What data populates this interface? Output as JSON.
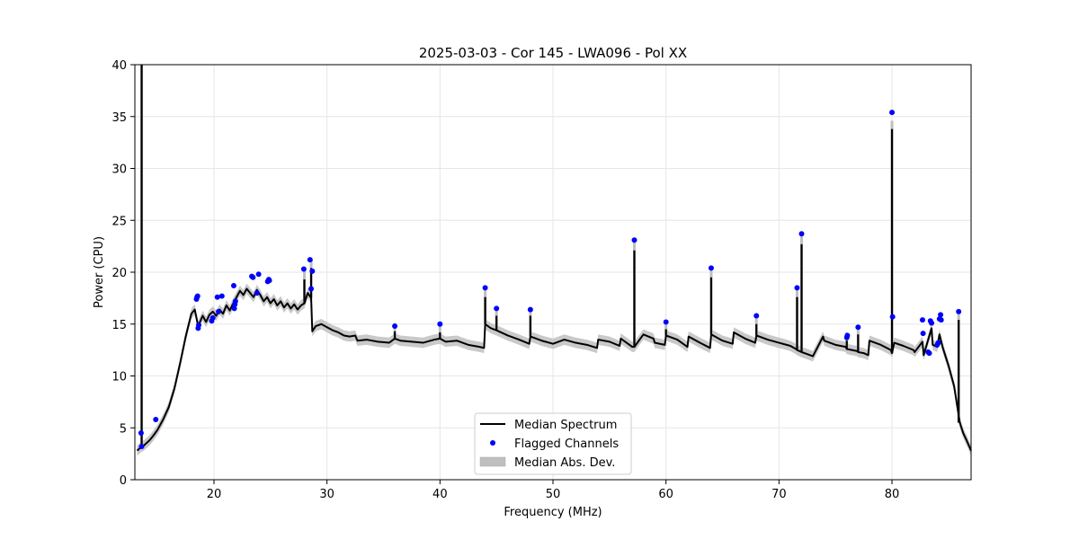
{
  "chart_data": {
    "type": "line",
    "title": "2025-03-03 - Cor 145 - LWA096 - Pol XX",
    "xlabel": "Frequency (MHz)",
    "ylabel": "Power (CPU)",
    "xlim": [
      13,
      87
    ],
    "ylim": [
      0,
      40
    ],
    "xticks": [
      20,
      30,
      40,
      50,
      60,
      70,
      80
    ],
    "yticks": [
      0,
      5,
      10,
      15,
      20,
      25,
      30,
      35,
      40
    ],
    "grid": true,
    "legend_position": "bottom-center",
    "colors": {
      "median": "#000000",
      "flagged": "#0000ff",
      "mad": "#bfbfbf"
    },
    "series": [
      {
        "name": "Median Spectrum",
        "kind": "line",
        "x": [
          13.2,
          13.4,
          13.6,
          13.8,
          14.0,
          14.3,
          14.6,
          15.0,
          15.5,
          16.0,
          16.5,
          17.0,
          17.5,
          18.0,
          18.3,
          18.6,
          18.8,
          19.0,
          19.3,
          19.6,
          19.9,
          20.2,
          20.5,
          20.8,
          21.1,
          21.4,
          21.7,
          22.0,
          22.3,
          22.6,
          22.9,
          23.2,
          23.5,
          23.8,
          24.1,
          24.4,
          24.7,
          25.0,
          25.3,
          25.6,
          25.9,
          26.2,
          26.5,
          26.8,
          27.1,
          27.4,
          27.7,
          28.0,
          28.3,
          28.6,
          28.7,
          29.0,
          29.5,
          30.0,
          30.5,
          31.0,
          31.5,
          32.0,
          32.5,
          32.7,
          33.5,
          34.5,
          35.5,
          36.0,
          36.5,
          37.5,
          38.5,
          39.5,
          40.0,
          40.5,
          41.5,
          42.5,
          43.5,
          43.9,
          44.0,
          44.5,
          45.0,
          46.0,
          47.0,
          47.9,
          48.0,
          49.0,
          50.0,
          51.0,
          52.0,
          53.0,
          53.9,
          54.0,
          55.0,
          55.9,
          56.0,
          56.9,
          57.0,
          57.2,
          58.0,
          58.9,
          59.0,
          59.9,
          60.0,
          61.0,
          61.9,
          62.0,
          63.0,
          63.9,
          64.0,
          65.0,
          65.9,
          66.0,
          67.0,
          67.9,
          68.0,
          69.0,
          70.0,
          71.0,
          71.5,
          71.6,
          72.0,
          72.5,
          73.0,
          73.9,
          74.0,
          75.0,
          75.9,
          76.0,
          76.9,
          77.0,
          77.5,
          77.9,
          78.0,
          79.0,
          79.9,
          80.0,
          80.2,
          81.0,
          81.9,
          82.0,
          82.7,
          82.8,
          83.5,
          83.6,
          84.0,
          84.2,
          84.5,
          85.0,
          85.5,
          86.0,
          86.3,
          86.6,
          87.0
        ],
        "y": [
          2.8,
          3.0,
          3.2,
          3.3,
          3.5,
          3.8,
          4.2,
          4.8,
          5.8,
          7.0,
          8.8,
          11.2,
          13.8,
          16.0,
          16.4,
          14.8,
          15.3,
          15.8,
          15.2,
          15.9,
          16.2,
          15.8,
          16.4,
          16.0,
          16.8,
          16.3,
          17.0,
          17.6,
          18.2,
          17.8,
          18.4,
          18.0,
          17.6,
          18.3,
          17.8,
          17.2,
          17.6,
          17.0,
          17.4,
          16.8,
          17.2,
          16.6,
          17.0,
          16.5,
          16.9,
          16.4,
          16.8,
          17.0,
          18.0,
          17.5,
          14.3,
          14.8,
          15.0,
          14.7,
          14.4,
          14.2,
          13.9,
          13.8,
          13.9,
          13.4,
          13.5,
          13.3,
          13.2,
          13.6,
          13.4,
          13.3,
          13.2,
          13.5,
          13.6,
          13.3,
          13.4,
          13.0,
          12.8,
          12.7,
          15.0,
          14.6,
          14.4,
          13.9,
          13.5,
          13.1,
          13.8,
          13.4,
          13.1,
          13.5,
          13.2,
          13.0,
          12.7,
          13.5,
          13.3,
          12.9,
          13.6,
          12.9,
          12.8,
          12.8,
          14.0,
          13.6,
          13.2,
          13.0,
          13.9,
          13.5,
          12.8,
          13.8,
          13.2,
          12.7,
          14.0,
          13.4,
          13.1,
          14.2,
          13.6,
          13.2,
          13.9,
          13.5,
          13.2,
          12.9,
          12.6,
          12.5,
          12.3,
          12.1,
          11.9,
          13.8,
          13.4,
          13.0,
          12.8,
          12.6,
          12.4,
          12.3,
          12.2,
          12.0,
          13.4,
          13.0,
          12.5,
          12.2,
          13.2,
          12.9,
          12.5,
          12.3,
          13.3,
          12.0,
          14.6,
          13.0,
          12.8,
          14.0,
          12.7,
          11.0,
          9.0,
          5.5,
          4.5,
          3.8,
          2.8
        ]
      },
      {
        "name": "Flagged Channels",
        "kind": "scatter",
        "x": [
          13.55,
          13.6,
          14.85,
          18.45,
          18.5,
          18.55,
          18.6,
          18.65,
          19.8,
          19.9,
          20.3,
          20.4,
          20.7,
          21.75,
          21.8,
          21.85,
          21.9,
          23.35,
          23.45,
          23.8,
          23.95,
          24.75,
          24.85,
          24.9,
          27.95,
          28.5,
          28.6,
          28.7,
          36.0,
          40.0,
          44.0,
          45.0,
          48.0,
          57.2,
          60.0,
          64.0,
          68.0,
          71.6,
          72.0,
          76.0,
          76.05,
          77.0,
          80.0,
          80.05,
          82.7,
          82.75,
          83.2,
          83.3,
          83.4,
          83.5,
          84.0,
          84.1,
          84.2,
          84.3,
          84.35,
          85.9
        ],
        "y": [
          4.5,
          3.2,
          5.8,
          17.4,
          17.6,
          17.7,
          14.6,
          14.9,
          15.3,
          15.6,
          17.6,
          16.2,
          17.7,
          18.7,
          16.5,
          16.9,
          17.2,
          19.6,
          19.5,
          18.0,
          19.8,
          19.1,
          19.3,
          19.2,
          20.3,
          21.2,
          18.4,
          20.1,
          14.8,
          15.0,
          18.5,
          16.5,
          16.4,
          23.1,
          15.2,
          20.4,
          15.8,
          18.5,
          23.7,
          13.7,
          13.9,
          14.7,
          35.4,
          15.7,
          15.4,
          14.1,
          12.3,
          12.2,
          15.3,
          15.1,
          13.0,
          13.2,
          15.5,
          15.9,
          15.4,
          16.2
        ]
      },
      {
        "name": "Median Abs. Dev.",
        "kind": "band",
        "halfwidth": 0.5
      }
    ],
    "spikes": [
      {
        "x": 13.6,
        "y": 40.0
      },
      {
        "x": 28.0,
        "y": 19.3
      },
      {
        "x": 28.6,
        "y": 20.4
      },
      {
        "x": 36.0,
        "y": 14.3
      },
      {
        "x": 40.0,
        "y": 14.2
      },
      {
        "x": 44.0,
        "y": 17.6
      },
      {
        "x": 45.0,
        "y": 15.8
      },
      {
        "x": 48.0,
        "y": 15.8
      },
      {
        "x": 57.2,
        "y": 22.1
      },
      {
        "x": 60.0,
        "y": 14.5
      },
      {
        "x": 64.0,
        "y": 19.5
      },
      {
        "x": 68.0,
        "y": 15.0
      },
      {
        "x": 71.6,
        "y": 17.6
      },
      {
        "x": 72.0,
        "y": 22.7
      },
      {
        "x": 76.0,
        "y": 13.4
      },
      {
        "x": 77.0,
        "y": 14.0
      },
      {
        "x": 80.0,
        "y": 33.8
      },
      {
        "x": 85.9,
        "y": 15.4
      }
    ]
  }
}
